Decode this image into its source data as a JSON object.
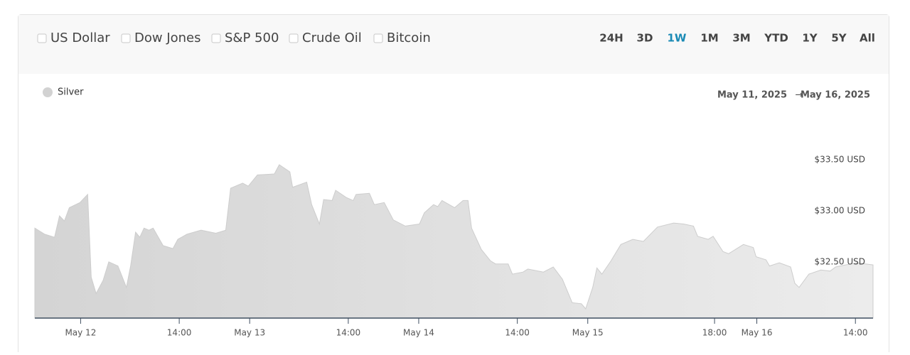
{
  "comparisons": [
    "US Dollar",
    "Dow Jones",
    "S&P 500",
    "Crude Oil",
    "Bitcoin"
  ],
  "ranges": [
    "24H",
    "3D",
    "1W",
    "1M",
    "3M",
    "YTD",
    "1Y",
    "5Y",
    "All"
  ],
  "active_range": 2,
  "date_range": {
    "from": "May 11, 2025",
    "arrow": "→",
    "to": "May 16, 2025"
  },
  "chart_data": {
    "type": "area",
    "x": [
      -6.5,
      -5.1,
      -3.7,
      -3.0,
      -2.3,
      -1.6,
      -0.1,
      1.0,
      1.5,
      2.2,
      3.2,
      4.0,
      5.3,
      6.5,
      7.1,
      7.8,
      8.4,
      9.0,
      9.7,
      10.3,
      11.7,
      13.1,
      13.8,
      15.1,
      17.1,
      19.2,
      20.6,
      21.3,
      23.0,
      23.8,
      25.1,
      27.5,
      28.2,
      29.7,
      30.1,
      32.1,
      32.8,
      33.9,
      34.5,
      35.7,
      36.2,
      37.7,
      38.7,
      39.1,
      41.0,
      41.7,
      43.1,
      44.4,
      46.1,
      48.1,
      48.8,
      50.1,
      50.7,
      51.3,
      53.1,
      54.3,
      55.0,
      55.5,
      56.9,
      58.2,
      58.9,
      60.7,
      61.3,
      62.8,
      63.5,
      65.7,
      67.1,
      68.4,
      69.8,
      71.1,
      71.7,
      72.7,
      73.3,
      74.0,
      75.3,
      76.7,
      78.4,
      79.9,
      81.9,
      84.2,
      85.6,
      87.0,
      87.6,
      89.1,
      89.8,
      91.2,
      92.0,
      94.1,
      95.5,
      95.9,
      97.3,
      97.8,
      99.2,
      100.8,
      101.4,
      102.0,
      103.4,
      105.1,
      106.4,
      107.2,
      108.6,
      110.2,
      112.5
    ],
    "series": [
      {
        "name": "Silver",
        "color": "#d2d2d2",
        "values": [
          32.83,
          32.77,
          32.74,
          32.95,
          32.9,
          33.03,
          33.08,
          33.16,
          32.35,
          32.19,
          32.32,
          32.5,
          32.46,
          32.25,
          32.46,
          32.79,
          32.74,
          32.83,
          32.81,
          32.83,
          32.66,
          32.63,
          32.72,
          32.77,
          32.81,
          32.78,
          32.81,
          33.22,
          33.27,
          33.24,
          33.35,
          33.36,
          33.45,
          33.38,
          33.23,
          33.28,
          33.06,
          32.87,
          33.11,
          33.1,
          33.2,
          33.13,
          33.1,
          33.16,
          33.17,
          33.06,
          33.08,
          32.91,
          32.85,
          32.87,
          32.98,
          33.06,
          33.04,
          33.1,
          33.03,
          33.1,
          33.1,
          32.83,
          32.62,
          32.51,
          32.48,
          32.48,
          32.38,
          32.4,
          32.43,
          32.4,
          32.45,
          32.33,
          32.1,
          32.09,
          32.04,
          32.25,
          32.44,
          32.38,
          32.51,
          32.67,
          32.72,
          32.7,
          32.84,
          32.88,
          32.87,
          32.85,
          32.75,
          32.72,
          32.75,
          32.6,
          32.58,
          32.67,
          32.64,
          32.55,
          32.52,
          32.46,
          32.49,
          32.45,
          32.29,
          32.25,
          32.38,
          32.42,
          32.41,
          32.45,
          32.47,
          32.49,
          32.47
        ]
      }
    ],
    "xlim": [
      -6.5,
      112.5
    ],
    "xticks": [
      {
        "value": 0,
        "label": "May 12"
      },
      {
        "value": 14,
        "label": "14:00"
      },
      {
        "value": 24,
        "label": "May 13"
      },
      {
        "value": 38,
        "label": "14:00"
      },
      {
        "value": 48,
        "label": "May 14"
      },
      {
        "value": 62,
        "label": "14:00"
      },
      {
        "value": 72,
        "label": "May 15"
      },
      {
        "value": 90,
        "label": "18:00"
      },
      {
        "value": 96,
        "label": "May 16"
      },
      {
        "value": 110,
        "label": "14:00"
      }
    ],
    "ylim": [
      31.95,
      33.95
    ],
    "yticks": [
      {
        "value": 32.5,
        "label": "$32.50 USD"
      },
      {
        "value": 33.0,
        "label": "$33.00 USD"
      },
      {
        "value": 33.5,
        "label": "$33.50 USD"
      }
    ]
  }
}
